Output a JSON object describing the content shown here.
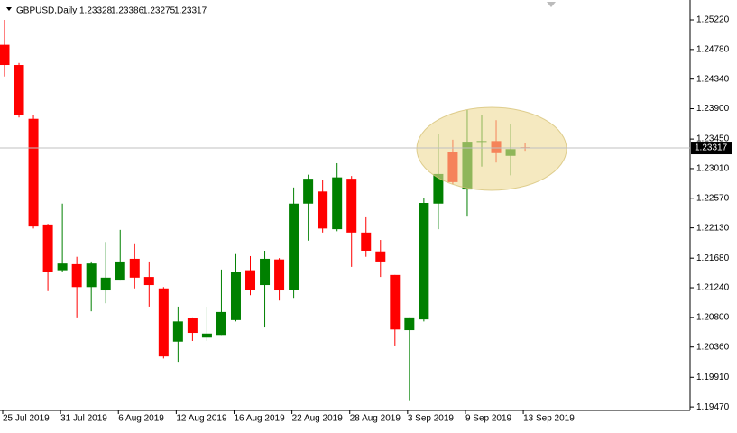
{
  "chart_data": {
    "type": "candlestick",
    "title": "GBPUSD,Daily",
    "categories": [
      "25 Jul 2019",
      null,
      null,
      null,
      "31 Jul 2019",
      null,
      null,
      null,
      "6 Aug 2019",
      null,
      null,
      null,
      "12 Aug 2019",
      null,
      null,
      null,
      "16 Aug 2019",
      null,
      null,
      null,
      "22 Aug 2019",
      null,
      null,
      null,
      "28 Aug 2019",
      null,
      null,
      null,
      "3 Sep 2019",
      null,
      null,
      null,
      "9 Sep 2019",
      null,
      null,
      null,
      "13 Sep 2019"
    ],
    "open": [
      1.2485,
      1.2455,
      1.2375,
      1.2218,
      1.215,
      1.2159,
      1.2125,
      1.212,
      1.2136,
      1.2167,
      1.214,
      1.2123,
      1.2044,
      1.2079,
      1.205,
      1.2054,
      1.2076,
      1.215,
      1.2128,
      1.2166,
      1.2121,
      1.2249,
      1.2267,
      1.2211,
      1.2286,
      1.2206,
      1.2178,
      1.2143,
      1.2061,
      1.2077,
      1.2249,
      1.2326,
      1.227,
      1.2341,
      1.2342,
      1.232,
      1.23328
    ],
    "high": [
      1.2522,
      1.2458,
      1.2381,
      1.2219,
      1.2249,
      1.217,
      1.2163,
      1.2192,
      1.221,
      1.219,
      1.2163,
      1.2125,
      1.2096,
      1.208,
      1.2096,
      1.2151,
      1.2174,
      1.2171,
      1.2179,
      1.2168,
      1.2273,
      1.2292,
      1.2284,
      1.2309,
      1.229,
      1.223,
      1.2195,
      1.2143,
      1.208,
      1.2258,
      1.2353,
      1.2344,
      1.2388,
      1.238,
      1.2373,
      1.2367,
      1.23386
    ],
    "low": [
      1.2438,
      1.2377,
      1.2212,
      1.2119,
      1.2148,
      1.208,
      1.2089,
      1.2101,
      1.2136,
      1.2123,
      1.2096,
      1.2019,
      1.2014,
      1.2045,
      1.2045,
      1.2054,
      1.2074,
      1.2113,
      1.2065,
      1.2105,
      1.2109,
      1.2194,
      1.2206,
      1.2208,
      1.2155,
      1.217,
      1.214,
      1.2037,
      1.1957,
      1.2074,
      1.2211,
      1.2278,
      1.2231,
      1.2304,
      1.231,
      1.2291,
      1.23275
    ],
    "close": [
      1.2455,
      1.238,
      1.2215,
      1.2148,
      1.216,
      1.2125,
      1.216,
      1.2139,
      1.2163,
      1.2139,
      1.2128,
      1.2022,
      1.2074,
      1.2057,
      1.2056,
      1.2088,
      1.2147,
      1.2121,
      1.2167,
      1.212,
      1.2249,
      1.2286,
      1.2212,
      1.2288,
      1.2206,
      1.2179,
      1.2163,
      1.2062,
      1.208,
      1.225,
      1.2293,
      1.2281,
      1.2341,
      1.2342,
      1.2324,
      1.233,
      1.23317
    ],
    "up_color": "#008000",
    "down_color": "#ff0000",
    "ylim": [
      1.19418,
      1.25515
    ],
    "yticks": [
      {
        "value": 1.2522,
        "label": "1.25220"
      },
      {
        "value": 1.2478,
        "label": "1.24780"
      },
      {
        "value": 1.2434,
        "label": "1.24340"
      },
      {
        "value": 1.239,
        "label": "1.23900"
      },
      {
        "value": 1.2345,
        "label": "1.23450"
      },
      {
        "value": 1.2301,
        "label": "1.23010"
      },
      {
        "value": 1.2257,
        "label": "1.22570"
      },
      {
        "value": 1.2213,
        "label": "1.22130"
      },
      {
        "value": 1.2168,
        "label": "1.21680"
      },
      {
        "value": 1.2124,
        "label": "1.21240"
      },
      {
        "value": 1.208,
        "label": "1.20800"
      },
      {
        "value": 1.2036,
        "label": "1.20360"
      },
      {
        "value": 1.1991,
        "label": "1.19910"
      },
      {
        "value": 1.1947,
        "label": "1.19470"
      }
    ]
  }
}
